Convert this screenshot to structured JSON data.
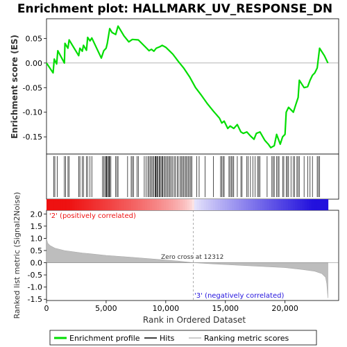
{
  "chart_data": {
    "type": "line",
    "title": "Enrichment plot: HALLMARK_UV_RESPONSE_DN",
    "xlabel": "Rank in Ordered Dataset",
    "x_ticks": [
      0,
      5000,
      10000,
      15000,
      20000
    ],
    "x_tick_labels": [
      "0",
      "5,000",
      "10,000",
      "15,000",
      "20,000"
    ],
    "xlim": [
      0,
      24500
    ],
    "enrichment": {
      "ylabel": "Enrichment score (ES)",
      "ylim": [
        -0.185,
        0.09
      ],
      "y_ticks": [
        0.05,
        0.0,
        -0.05,
        -0.1,
        -0.15
      ],
      "y_tick_labels": [
        "0.05",
        "0.00",
        "-0.05",
        "-0.10",
        "-0.15"
      ],
      "color": "#00dd00",
      "points": [
        [
          0,
          0.0
        ],
        [
          550,
          -0.02
        ],
        [
          650,
          0.008
        ],
        [
          850,
          -0.002
        ],
        [
          950,
          0.025
        ],
        [
          1500,
          0.0
        ],
        [
          1550,
          0.04
        ],
        [
          1800,
          0.03
        ],
        [
          1900,
          0.047
        ],
        [
          2700,
          0.015
        ],
        [
          2800,
          0.03
        ],
        [
          3000,
          0.024
        ],
        [
          3100,
          0.036
        ],
        [
          3350,
          0.026
        ],
        [
          3450,
          0.052
        ],
        [
          3650,
          0.045
        ],
        [
          3800,
          0.051
        ],
        [
          4600,
          0.01
        ],
        [
          4800,
          0.025
        ],
        [
          5000,
          0.03
        ],
        [
          5100,
          0.04
        ],
        [
          5300,
          0.07
        ],
        [
          5500,
          0.062
        ],
        [
          5800,
          0.058
        ],
        [
          6000,
          0.075
        ],
        [
          6500,
          0.055
        ],
        [
          6900,
          0.043
        ],
        [
          7200,
          0.048
        ],
        [
          7700,
          0.047
        ],
        [
          8400,
          0.03
        ],
        [
          8600,
          0.025
        ],
        [
          8800,
          0.028
        ],
        [
          9000,
          0.024
        ],
        [
          9200,
          0.03
        ],
        [
          9500,
          0.033
        ],
        [
          9700,
          0.036
        ],
        [
          10000,
          0.032
        ],
        [
          10300,
          0.025
        ],
        [
          10600,
          0.018
        ],
        [
          11000,
          0.005
        ],
        [
          11500,
          -0.01
        ],
        [
          12000,
          -0.028
        ],
        [
          12500,
          -0.05
        ],
        [
          13000,
          -0.066
        ],
        [
          13500,
          -0.083
        ],
        [
          14000,
          -0.098
        ],
        [
          14500,
          -0.112
        ],
        [
          14700,
          -0.122
        ],
        [
          14900,
          -0.118
        ],
        [
          15200,
          -0.133
        ],
        [
          15400,
          -0.128
        ],
        [
          15700,
          -0.133
        ],
        [
          16000,
          -0.125
        ],
        [
          16300,
          -0.14
        ],
        [
          16500,
          -0.143
        ],
        [
          16800,
          -0.14
        ],
        [
          17100,
          -0.148
        ],
        [
          17400,
          -0.155
        ],
        [
          17600,
          -0.143
        ],
        [
          17900,
          -0.14
        ],
        [
          18300,
          -0.157
        ],
        [
          18600,
          -0.165
        ],
        [
          18800,
          -0.172
        ],
        [
          19100,
          -0.168
        ],
        [
          19300,
          -0.145
        ],
        [
          19600,
          -0.165
        ],
        [
          19800,
          -0.15
        ],
        [
          20000,
          -0.145
        ],
        [
          20100,
          -0.1
        ],
        [
          20300,
          -0.09
        ],
        [
          20500,
          -0.095
        ],
        [
          20700,
          -0.1
        ],
        [
          20900,
          -0.085
        ],
        [
          21100,
          -0.07
        ],
        [
          21200,
          -0.035
        ],
        [
          21600,
          -0.05
        ],
        [
          21900,
          -0.048
        ],
        [
          22100,
          -0.035
        ],
        [
          22300,
          -0.025
        ],
        [
          22500,
          -0.02
        ],
        [
          22700,
          -0.01
        ],
        [
          22900,
          0.03
        ],
        [
          23300,
          0.015
        ],
        [
          23600,
          0.0
        ]
      ]
    },
    "hits": {
      "label": "Hits",
      "ranks": [
        600,
        700,
        900,
        1500,
        1600,
        1800,
        1900,
        2700,
        2800,
        3000,
        3100,
        3350,
        3450,
        3650,
        3800,
        4700,
        4800,
        4900,
        5000,
        5050,
        5100,
        5200,
        5250,
        5300,
        5400,
        5800,
        5900,
        6000,
        6800,
        7100,
        7200,
        7300,
        7600,
        7700,
        8200,
        8350,
        8500,
        8600,
        8700,
        8800,
        8900,
        9000,
        9100,
        9150,
        9200,
        9300,
        9350,
        9450,
        9500,
        9600,
        9700,
        9750,
        9850,
        9950,
        10050,
        10150,
        10250,
        10350,
        10450,
        10550,
        10700,
        10800,
        10950,
        11050,
        11200,
        11300,
        11400,
        11500,
        11600,
        11700,
        11800,
        11900,
        12000,
        12100,
        12200,
        12600,
        12800,
        13300,
        14000,
        14600,
        14700,
        14800,
        14900,
        15300,
        15400,
        15500,
        15600,
        15700,
        16000,
        16300,
        16400,
        16800,
        16900,
        17100,
        17300,
        17500,
        17700,
        17800,
        17900,
        18500,
        18900,
        19000,
        19100,
        19300,
        19400,
        19500,
        19800,
        19900,
        20100,
        20200,
        20300,
        20500,
        20700,
        20800,
        21000,
        21100,
        21200,
        21600,
        21900,
        22100,
        22300,
        22700,
        22800,
        22900
      ]
    },
    "ranking": {
      "ylabel": "Ranked list metric (Signal2Noise)",
      "label": "Ranking metric scores",
      "ylim": [
        -1.55,
        2.15
      ],
      "y_ticks": [
        2.0,
        1.5,
        1.0,
        0.5,
        0.0,
        -0.5,
        -1.0,
        -1.5
      ],
      "y_tick_labels": [
        "2.0",
        "1.5",
        "1.0",
        "0.5",
        "0.0",
        "-0.5",
        "-1.0",
        "-1.5"
      ],
      "points": [
        [
          0,
          1.0
        ],
        [
          100,
          0.8
        ],
        [
          300,
          0.7
        ],
        [
          700,
          0.6
        ],
        [
          1500,
          0.5
        ],
        [
          3000,
          0.4
        ],
        [
          5000,
          0.3
        ],
        [
          7000,
          0.23
        ],
        [
          9000,
          0.15
        ],
        [
          11000,
          0.07
        ],
        [
          12312,
          0.0
        ],
        [
          14000,
          -0.05
        ],
        [
          16000,
          -0.1
        ],
        [
          18000,
          -0.15
        ],
        [
          20000,
          -0.2
        ],
        [
          21500,
          -0.28
        ],
        [
          22500,
          -0.35
        ],
        [
          23100,
          -0.45
        ],
        [
          23400,
          -0.6
        ],
        [
          23500,
          -0.85
        ],
        [
          23600,
          -1.45
        ]
      ],
      "zero_cross_label": "Zero cross at 12312",
      "zero_cross_rank": 12312,
      "positive_label": "'2' (positively correlated)",
      "negative_label": "'3' (negatively correlated)",
      "positive_color": "#ee1111",
      "negative_color": "#2211dd"
    },
    "n_ranks": 23600,
    "legend": {
      "placement": "bottom",
      "entries": [
        "Enrichment profile",
        "Hits",
        "Ranking metric scores"
      ]
    }
  }
}
